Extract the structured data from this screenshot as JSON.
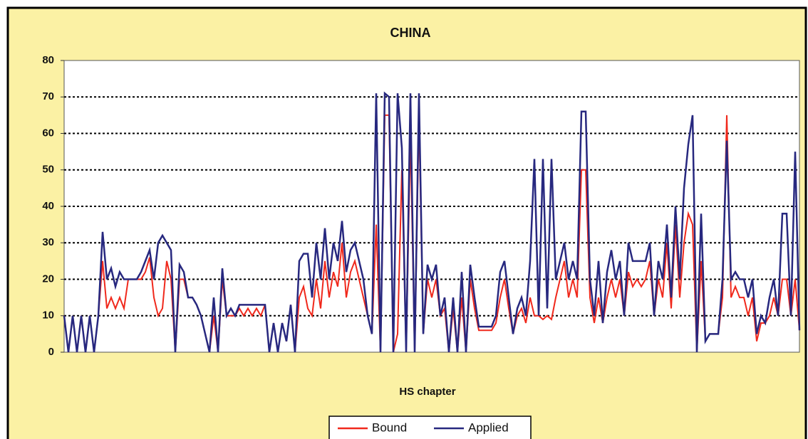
{
  "chart_data": {
    "type": "line",
    "title": "CHINA",
    "x_label": "HS chapter",
    "ylim": [
      0,
      80
    ],
    "yticks": [
      0,
      10,
      20,
      30,
      40,
      50,
      60,
      70,
      80
    ],
    "grid": true,
    "legend": "bottom",
    "series": [
      {
        "name": "Bound",
        "color": "#f0291c",
        "values": [
          10,
          0,
          10,
          0,
          10,
          0,
          10,
          0,
          10,
          25,
          12,
          15,
          12,
          15,
          12,
          20,
          20,
          20,
          20,
          22,
          26,
          15,
          10,
          12,
          25,
          20,
          0,
          20,
          20,
          15,
          15,
          13,
          10,
          5,
          0,
          10,
          0,
          20,
          10,
          10,
          10,
          12,
          10,
          12,
          10,
          12,
          10,
          13,
          0,
          8,
          0,
          8,
          3,
          13,
          0,
          15,
          18,
          12,
          10,
          20,
          12,
          25,
          15,
          22,
          18,
          30,
          15,
          22,
          25,
          20,
          15,
          10,
          5,
          35,
          0,
          65,
          65,
          0,
          5,
          50,
          0,
          60,
          0,
          65,
          5,
          20,
          15,
          20,
          10,
          12,
          0,
          12,
          0,
          15,
          0,
          20,
          12,
          6,
          6,
          6,
          6,
          8,
          15,
          20,
          12,
          5,
          10,
          12,
          8,
          15,
          10,
          10,
          9,
          10,
          9,
          15,
          20,
          25,
          15,
          20,
          15,
          50,
          50,
          15,
          8,
          15,
          8,
          15,
          20,
          15,
          20,
          10,
          22,
          18,
          20,
          18,
          20,
          25,
          10,
          20,
          15,
          30,
          12,
          35,
          15,
          30,
          38,
          35,
          0,
          25,
          3,
          5,
          5,
          5,
          15,
          65,
          15,
          18,
          15,
          15,
          10,
          15,
          3,
          8,
          8,
          10,
          15,
          10,
          20,
          20,
          10,
          20,
          6
        ]
      },
      {
        "name": "Applied",
        "color": "#27287f",
        "values": [
          10,
          0,
          10,
          0,
          10,
          0,
          10,
          0,
          10,
          33,
          20,
          23,
          18,
          22,
          20,
          20,
          20,
          20,
          22,
          25,
          28,
          20,
          30,
          32,
          30,
          28,
          0,
          24,
          22,
          15,
          15,
          13,
          10,
          5,
          0,
          15,
          0,
          23,
          10,
          12,
          10,
          13,
          13,
          13,
          13,
          13,
          13,
          13,
          0,
          8,
          0,
          8,
          3,
          13,
          0,
          25,
          27,
          27,
          15,
          30,
          20,
          34,
          20,
          30,
          25,
          36,
          22,
          28,
          30,
          25,
          20,
          10,
          5,
          71,
          0,
          71,
          70,
          0,
          71,
          56,
          0,
          71,
          0,
          71,
          5,
          24,
          20,
          24,
          10,
          15,
          0,
          15,
          0,
          22,
          0,
          24,
          15,
          7,
          7,
          7,
          7,
          10,
          22,
          25,
          15,
          5,
          12,
          15,
          10,
          25,
          53,
          10,
          53,
          12,
          53,
          20,
          25,
          30,
          20,
          25,
          20,
          66,
          66,
          20,
          10,
          25,
          8,
          22,
          28,
          20,
          25,
          10,
          30,
          25,
          25,
          25,
          25,
          30,
          10,
          25,
          20,
          35,
          15,
          40,
          20,
          45,
          57,
          65,
          0,
          38,
          3,
          5,
          5,
          5,
          20,
          58,
          20,
          22,
          20,
          20,
          15,
          20,
          5,
          10,
          8,
          15,
          20,
          10,
          38,
          38,
          10,
          55,
          6
        ]
      }
    ]
  }
}
